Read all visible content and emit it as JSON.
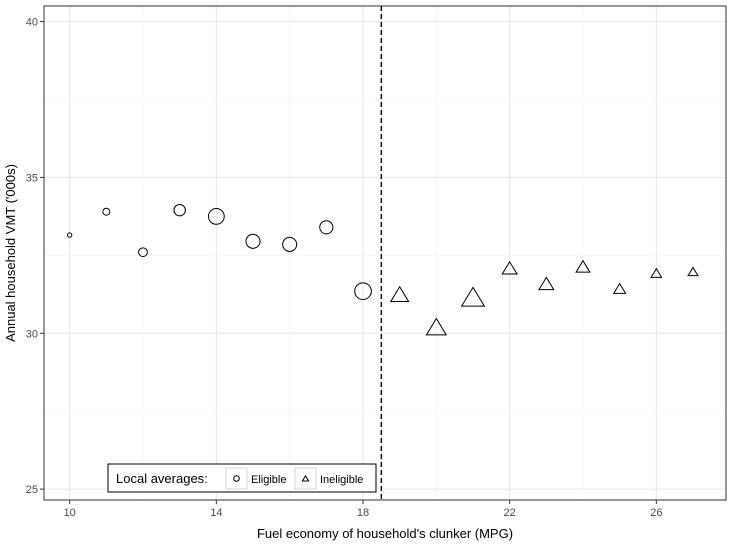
{
  "chart_data": {
    "type": "scatter",
    "title": "",
    "xlabel": "Fuel economy of household's clunker (MPG)",
    "ylabel": "Annual household VMT ('000s)",
    "xlim": [
      9.3,
      27.9
    ],
    "ylim": [
      24.65,
      40.5
    ],
    "x_ticks": [
      10,
      14,
      18,
      22,
      26
    ],
    "x_minor_ticks": [
      12,
      16,
      20,
      24
    ],
    "y_ticks": [
      25,
      30,
      35,
      40
    ],
    "y_minor_ticks": [
      27.5,
      32.5,
      37.5
    ],
    "grid": true,
    "cutoff_line": {
      "x": 18.5,
      "style": "dashed"
    },
    "legend": {
      "placement": "bottom-left",
      "title": "Local averages:",
      "entries": [
        {
          "label": "Eligible",
          "shape": "circle"
        },
        {
          "label": "Ineligible",
          "shape": "triangle"
        }
      ]
    },
    "series": [
      {
        "name": "Eligible",
        "shape": "circle",
        "points": [
          {
            "x": 10,
            "y": 33.15,
            "size": 0.1
          },
          {
            "x": 11,
            "y": 33.9,
            "size": 0.25
          },
          {
            "x": 12,
            "y": 32.6,
            "size": 0.35
          },
          {
            "x": 13,
            "y": 33.95,
            "size": 0.5
          },
          {
            "x": 14,
            "y": 33.75,
            "size": 0.75
          },
          {
            "x": 15,
            "y": 32.95,
            "size": 0.65
          },
          {
            "x": 16,
            "y": 32.85,
            "size": 0.65
          },
          {
            "x": 17,
            "y": 33.4,
            "size": 0.6
          },
          {
            "x": 18,
            "y": 31.35,
            "size": 0.8
          }
        ]
      },
      {
        "name": "Ineligible",
        "shape": "triangle",
        "points": [
          {
            "x": 19,
            "y": 31.2,
            "size": 0.75
          },
          {
            "x": 20,
            "y": 30.15,
            "size": 0.85
          },
          {
            "x": 21,
            "y": 31.1,
            "size": 1.0
          },
          {
            "x": 22,
            "y": 32.05,
            "size": 0.6
          },
          {
            "x": 23,
            "y": 31.55,
            "size": 0.6
          },
          {
            "x": 24,
            "y": 32.1,
            "size": 0.55
          },
          {
            "x": 25,
            "y": 31.4,
            "size": 0.45
          },
          {
            "x": 26,
            "y": 31.9,
            "size": 0.38
          },
          {
            "x": 27,
            "y": 31.95,
            "size": 0.35
          }
        ]
      }
    ]
  }
}
